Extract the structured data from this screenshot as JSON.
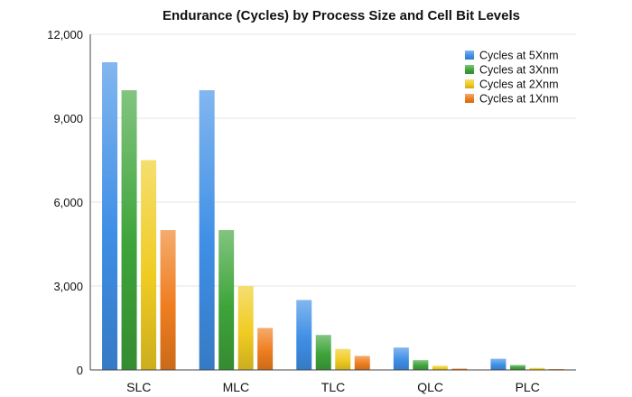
{
  "chart_data": {
    "type": "bar",
    "title": "Endurance (Cycles) by Process Size and Cell Bit Levels",
    "xlabel": "",
    "ylabel": "",
    "categories": [
      "SLC",
      "MLC",
      "TLC",
      "QLC",
      "PLC"
    ],
    "ylim": [
      0,
      12000
    ],
    "yticks": [
      0,
      3000,
      6000,
      9000,
      12000
    ],
    "ytick_labels": [
      "0",
      "3,000",
      "6,000",
      "9,000",
      "12,000"
    ],
    "grid": true,
    "legend_position": "top-right",
    "series": [
      {
        "name": "Cycles at 5Xnm",
        "color": "#3f8fe6",
        "values": [
          11000,
          10000,
          2500,
          800,
          400
        ]
      },
      {
        "name": "Cycles at 3Xnm",
        "color": "#3ea43a",
        "values": [
          10000,
          5000,
          1250,
          350,
          175
        ]
      },
      {
        "name": "Cycles at 2Xnm",
        "color": "#f0cc22",
        "values": [
          7500,
          3000,
          750,
          150,
          75
        ]
      },
      {
        "name": "Cycles at 1Xnm",
        "color": "#ef7d1f",
        "values": [
          5000,
          1500,
          500,
          50,
          25
        ]
      }
    ]
  }
}
